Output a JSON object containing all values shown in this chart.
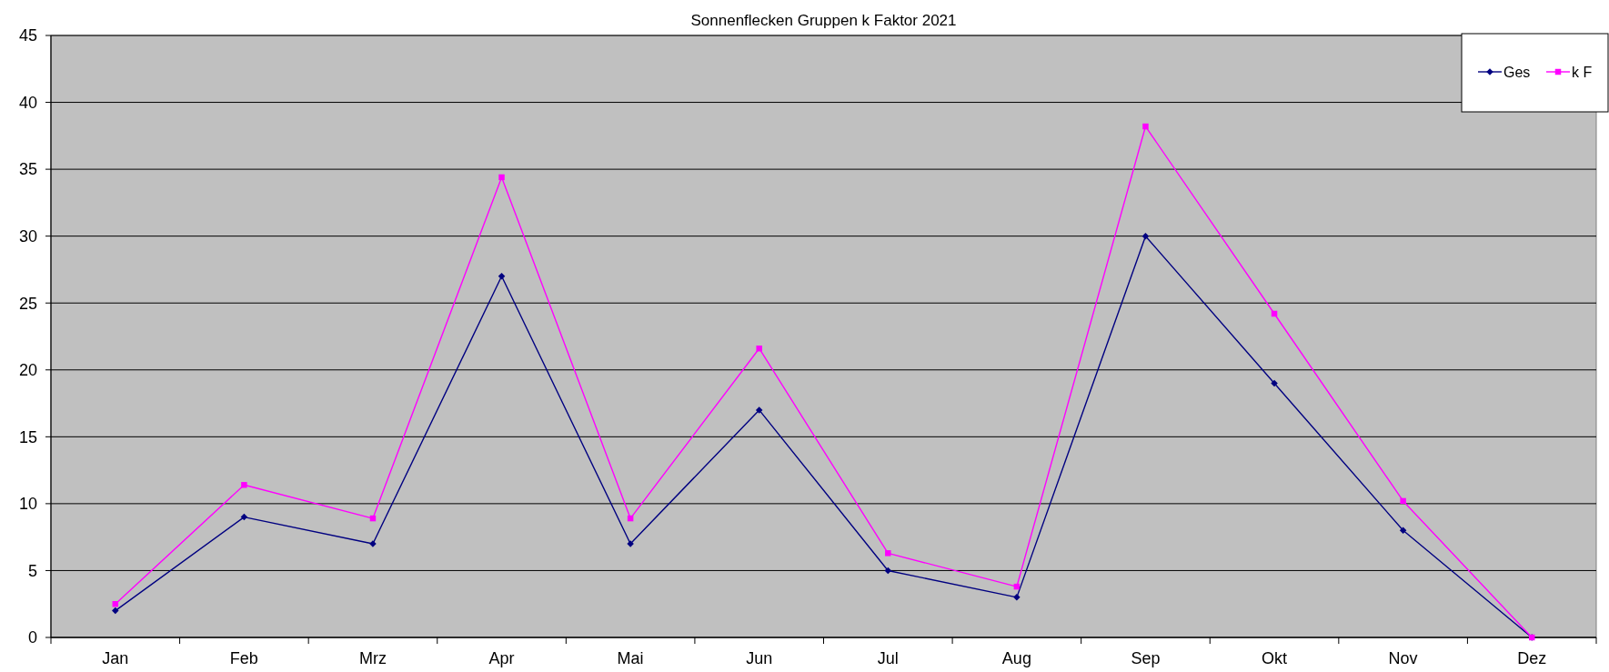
{
  "chart_data": {
    "type": "line",
    "title": "Sonnenflecken Gruppen k Faktor 2021",
    "categories": [
      "Jan",
      "Feb",
      "Mrz",
      "Apr",
      "Mai",
      "Jun",
      "Jul",
      "Aug",
      "Sep",
      "Okt",
      "Nov",
      "Dez"
    ],
    "series": [
      {
        "name": "Ges",
        "color": "#000080",
        "marker": "diamond",
        "values": [
          2,
          9,
          7,
          27,
          7,
          17,
          5,
          3,
          30,
          19,
          8,
          0
        ]
      },
      {
        "name": "k F",
        "color": "#ff00ff",
        "marker": "square",
        "values": [
          2.5,
          11.4,
          8.9,
          34.4,
          8.9,
          21.6,
          6.3,
          3.8,
          38.2,
          24.2,
          10.2,
          0
        ]
      }
    ],
    "ylim": [
      0,
      45
    ],
    "yticks": [
      0,
      5,
      10,
      15,
      20,
      25,
      30,
      35,
      40,
      45
    ],
    "grid": "y",
    "legend": "top right"
  }
}
